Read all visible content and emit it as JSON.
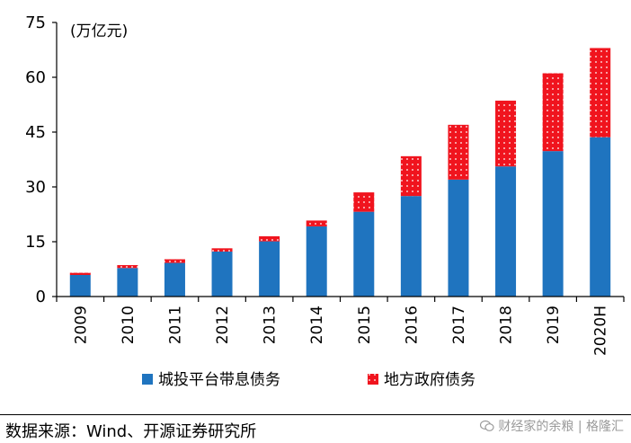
{
  "chart_data": {
    "type": "bar",
    "stacked": true,
    "unit": "(万亿元)",
    "categories": [
      "2009",
      "2010",
      "2011",
      "2012",
      "2013",
      "2014",
      "2015",
      "2016",
      "2017",
      "2018",
      "2019",
      "2020H"
    ],
    "series": [
      {
        "name": "城投平台带息债务",
        "color": "#1f74bf",
        "pattern": "solid",
        "values": [
          5.9,
          7.8,
          9.2,
          12.3,
          15.1,
          19.2,
          23.2,
          27.5,
          32.0,
          35.6,
          39.8,
          43.6
        ]
      },
      {
        "name": "地方政府债务",
        "color": "#f0141e",
        "pattern": "dotted",
        "values": [
          0.6,
          0.8,
          1.0,
          0.9,
          1.4,
          1.6,
          5.3,
          10.9,
          15.0,
          18.0,
          21.3,
          24.4
        ]
      }
    ],
    "ylim": [
      0,
      75
    ],
    "yticks": [
      0,
      15,
      30,
      45,
      60,
      75
    ],
    "grid": false,
    "legend_position": "bottom"
  },
  "source": "数据来源：Wind、开源证券研究所",
  "watermark": "财经家的余粮 | 格隆汇"
}
